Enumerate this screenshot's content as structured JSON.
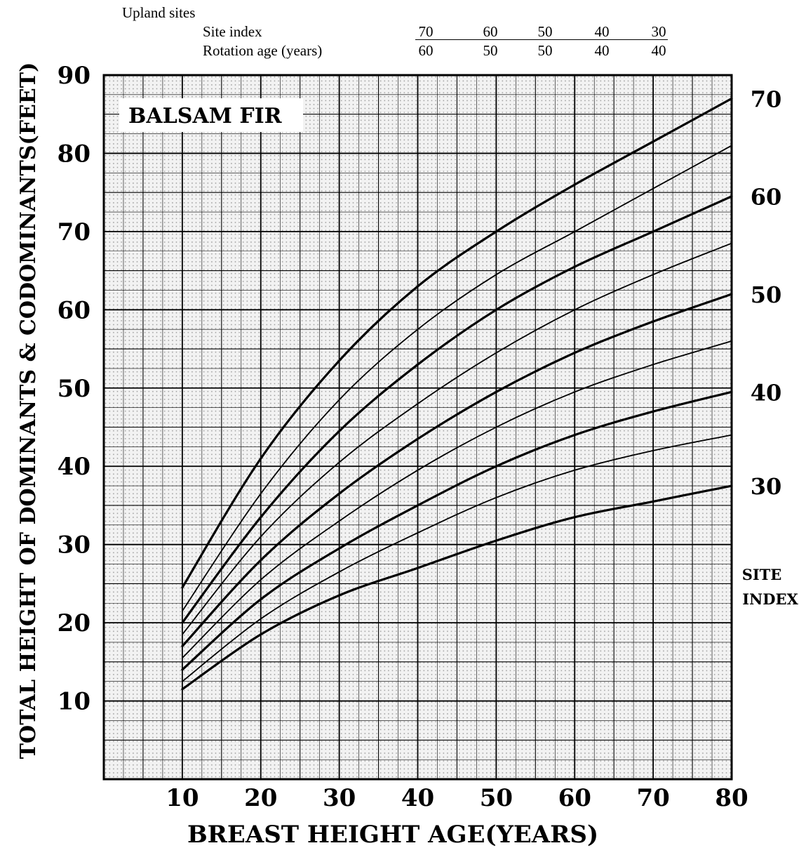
{
  "header": {
    "title": "Upland sites",
    "row1_label": "Site index",
    "row1_values": [
      "70",
      "60",
      "50",
      "40",
      "30"
    ],
    "row2_label": "Rotation age (years)",
    "row2_values": [
      "60",
      "50",
      "50",
      "40",
      "40"
    ]
  },
  "chart_data": {
    "type": "line",
    "title": "BALSAM FIR",
    "xlabel": "BREAST HEIGHT AGE(YEARS)",
    "ylabel": "TOTAL HEIGHT OF DOMINANTS & CODOMINANTS(FEET)",
    "right_axis_label": [
      "SITE",
      "INDEX"
    ],
    "xlim": [
      0,
      80
    ],
    "ylim": [
      0,
      90
    ],
    "x_ticks": [
      "10",
      "20",
      "30",
      "40",
      "50",
      "60",
      "70",
      "80"
    ],
    "y_ticks": [
      "10",
      "20",
      "30",
      "40",
      "50",
      "60",
      "70",
      "80",
      "90"
    ],
    "grid": true,
    "x": [
      10,
      20,
      30,
      40,
      50,
      60,
      70,
      80
    ],
    "series": [
      {
        "name": "70",
        "values": [
          24.5,
          41,
          53.5,
          63,
          70,
          76,
          81.5,
          87
        ],
        "bold": true,
        "labeled": true
      },
      {
        "name": "",
        "values": [
          21.5,
          36.5,
          48.5,
          57.5,
          64.5,
          70,
          75.5,
          81
        ],
        "bold": false,
        "labeled": false
      },
      {
        "name": "60",
        "values": [
          20,
          33.5,
          44.5,
          53,
          60,
          65.5,
          70,
          74.5
        ],
        "bold": true,
        "labeled": true
      },
      {
        "name": "",
        "values": [
          18.5,
          31,
          40.5,
          48,
          54.5,
          60,
          64.5,
          68.5
        ],
        "bold": false,
        "labeled": false
      },
      {
        "name": "50",
        "values": [
          17,
          28,
          36.5,
          43.5,
          49.5,
          54.5,
          58.5,
          62
        ],
        "bold": true,
        "labeled": true
      },
      {
        "name": "",
        "values": [
          15.5,
          25.5,
          33,
          39.5,
          45,
          49.5,
          53,
          56
        ],
        "bold": false,
        "labeled": false
      },
      {
        "name": "40",
        "values": [
          14,
          23,
          29.5,
          35,
          40,
          44,
          47,
          49.5
        ],
        "bold": true,
        "labeled": true
      },
      {
        "name": "",
        "values": [
          12.5,
          20.5,
          26.5,
          31.5,
          36,
          39.5,
          42,
          44
        ],
        "bold": false,
        "labeled": false
      },
      {
        "name": "30",
        "values": [
          11.5,
          18.5,
          23.5,
          27,
          30.5,
          33.5,
          35.5,
          37.5
        ],
        "bold": true,
        "labeled": true
      }
    ]
  }
}
